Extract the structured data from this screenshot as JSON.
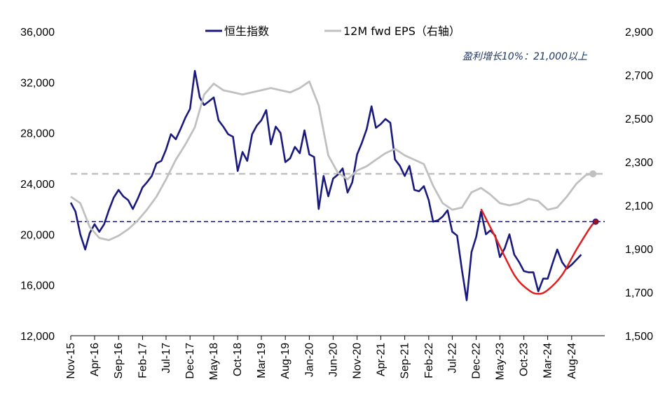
{
  "chart_data": {
    "type": "line",
    "title": "",
    "legend_position": "top-center",
    "grid": false,
    "x_axis": {
      "type": "date",
      "range": [
        "2015-11-01",
        "2025-02-28"
      ],
      "tick_labels": [
        "Nov-15",
        "Apr-16",
        "Sep-16",
        "Feb-17",
        "Jul-17",
        "Dec-17",
        "May-18",
        "Oct-18",
        "Mar-19",
        "Aug-19",
        "Jan-20",
        "Jun-20",
        "Nov-20",
        "Apr-21",
        "Sep-21",
        "Feb-22",
        "Jul-22",
        "Dec-22",
        "May-23",
        "Oct-23",
        "Mar-24",
        "Aug-24"
      ]
    },
    "y_left": {
      "range": [
        12000,
        36000
      ],
      "ticks": [
        12000,
        16000,
        20000,
        24000,
        28000,
        32000,
        36000
      ],
      "tick_labels": [
        "12,000",
        "16,000",
        "20,000",
        "24,000",
        "28,000",
        "32,000",
        "36,000"
      ]
    },
    "y_right": {
      "range": [
        1500,
        2900
      ],
      "ticks": [
        1500,
        1700,
        1900,
        2100,
        2300,
        2500,
        2700,
        2900
      ],
      "tick_labels": [
        "1,500",
        "1,700",
        "1,900",
        "2,100",
        "2,300",
        "2,500",
        "2,700",
        "2,900"
      ]
    },
    "series": [
      {
        "name": "恒生指数",
        "axis": "left",
        "color": "#1a1a7e",
        "points": [
          [
            "2015-11-01",
            22500
          ],
          [
            "2015-12-01",
            21800
          ],
          [
            "2016-01-01",
            20000
          ],
          [
            "2016-02-01",
            18800
          ],
          [
            "2016-03-01",
            20100
          ],
          [
            "2016-04-01",
            20800
          ],
          [
            "2016-05-01",
            20200
          ],
          [
            "2016-06-01",
            20800
          ],
          [
            "2016-07-01",
            21900
          ],
          [
            "2016-08-01",
            22900
          ],
          [
            "2016-09-01",
            23500
          ],
          [
            "2016-10-01",
            23000
          ],
          [
            "2016-11-01",
            22700
          ],
          [
            "2016-12-01",
            22000
          ],
          [
            "2017-01-01",
            22800
          ],
          [
            "2017-02-01",
            23700
          ],
          [
            "2017-03-01",
            24100
          ],
          [
            "2017-04-01",
            24600
          ],
          [
            "2017-05-01",
            25600
          ],
          [
            "2017-06-01",
            25800
          ],
          [
            "2017-07-01",
            26700
          ],
          [
            "2017-08-01",
            27900
          ],
          [
            "2017-09-01",
            27500
          ],
          [
            "2017-10-01",
            28300
          ],
          [
            "2017-11-01",
            29200
          ],
          [
            "2017-12-01",
            29900
          ],
          [
            "2018-01-01",
            32900
          ],
          [
            "2018-02-01",
            30800
          ],
          [
            "2018-03-01",
            30200
          ],
          [
            "2018-04-01",
            30500
          ],
          [
            "2018-05-01",
            30800
          ],
          [
            "2018-06-01",
            29000
          ],
          [
            "2018-07-01",
            28500
          ],
          [
            "2018-08-01",
            27900
          ],
          [
            "2018-09-01",
            27700
          ],
          [
            "2018-10-01",
            25000
          ],
          [
            "2018-11-01",
            26500
          ],
          [
            "2018-12-01",
            25800
          ],
          [
            "2019-01-01",
            27900
          ],
          [
            "2019-02-01",
            28600
          ],
          [
            "2019-03-01",
            29000
          ],
          [
            "2019-04-01",
            29800
          ],
          [
            "2019-05-01",
            27100
          ],
          [
            "2019-06-01",
            28500
          ],
          [
            "2019-07-01",
            28000
          ],
          [
            "2019-08-01",
            25700
          ],
          [
            "2019-09-01",
            26000
          ],
          [
            "2019-10-01",
            26900
          ],
          [
            "2019-11-01",
            26400
          ],
          [
            "2019-12-01",
            28200
          ],
          [
            "2020-01-01",
            26300
          ],
          [
            "2020-02-01",
            26100
          ],
          [
            "2020-03-01",
            22000
          ],
          [
            "2020-04-01",
            24600
          ],
          [
            "2020-05-01",
            23000
          ],
          [
            "2020-06-01",
            24400
          ],
          [
            "2020-07-01",
            24700
          ],
          [
            "2020-08-01",
            25200
          ],
          [
            "2020-09-01",
            23300
          ],
          [
            "2020-10-01",
            24100
          ],
          [
            "2020-11-01",
            26300
          ],
          [
            "2020-12-01",
            27200
          ],
          [
            "2021-01-01",
            28300
          ],
          [
            "2021-02-01",
            30100
          ],
          [
            "2021-03-01",
            28400
          ],
          [
            "2021-04-01",
            28700
          ],
          [
            "2021-05-01",
            29100
          ],
          [
            "2021-06-01",
            28800
          ],
          [
            "2021-07-01",
            25900
          ],
          [
            "2021-08-01",
            25400
          ],
          [
            "2021-09-01",
            24600
          ],
          [
            "2021-10-01",
            25400
          ],
          [
            "2021-11-01",
            23500
          ],
          [
            "2021-12-01",
            23400
          ],
          [
            "2022-01-01",
            23800
          ],
          [
            "2022-02-01",
            22700
          ],
          [
            "2022-03-01",
            21000
          ],
          [
            "2022-04-01",
            21100
          ],
          [
            "2022-05-01",
            21400
          ],
          [
            "2022-06-01",
            21900
          ],
          [
            "2022-07-01",
            20200
          ],
          [
            "2022-08-01",
            19900
          ],
          [
            "2022-09-01",
            17200
          ],
          [
            "2022-10-01",
            14800
          ],
          [
            "2022-11-01",
            18600
          ],
          [
            "2022-12-01",
            19800
          ],
          [
            "2023-01-01",
            21800
          ],
          [
            "2023-02-01",
            20000
          ],
          [
            "2023-03-01",
            20300
          ],
          [
            "2023-04-01",
            19900
          ],
          [
            "2023-05-01",
            18200
          ],
          [
            "2023-06-01",
            18900
          ],
          [
            "2023-07-01",
            20000
          ],
          [
            "2023-08-01",
            18400
          ],
          [
            "2023-09-01",
            17800
          ],
          [
            "2023-10-01",
            17100
          ],
          [
            "2023-11-01",
            17000
          ],
          [
            "2023-12-01",
            17000
          ],
          [
            "2024-01-01",
            15500
          ],
          [
            "2024-02-01",
            16500
          ],
          [
            "2024-03-01",
            16500
          ],
          [
            "2024-04-01",
            17700
          ],
          [
            "2024-05-01",
            18800
          ],
          [
            "2024-06-01",
            17800
          ],
          [
            "2024-07-01",
            17300
          ],
          [
            "2024-08-01",
            17600
          ],
          [
            "2024-09-01",
            18000
          ],
          [
            "2024-10-01",
            18400
          ]
        ]
      },
      {
        "name": "12M fwd EPS（右轴）",
        "axis": "right",
        "color": "#c0c0c0",
        "points": [
          [
            "2015-11-01",
            2140
          ],
          [
            "2016-01-01",
            2110
          ],
          [
            "2016-03-01",
            2000
          ],
          [
            "2016-05-01",
            1950
          ],
          [
            "2016-07-01",
            1940
          ],
          [
            "2016-09-01",
            1960
          ],
          [
            "2016-11-01",
            1990
          ],
          [
            "2017-01-01",
            2030
          ],
          [
            "2017-03-01",
            2080
          ],
          [
            "2017-05-01",
            2140
          ],
          [
            "2017-07-01",
            2220
          ],
          [
            "2017-09-01",
            2310
          ],
          [
            "2017-11-01",
            2380
          ],
          [
            "2018-01-01",
            2460
          ],
          [
            "2018-03-01",
            2610
          ],
          [
            "2018-05-01",
            2660
          ],
          [
            "2018-07-01",
            2630
          ],
          [
            "2018-09-01",
            2620
          ],
          [
            "2018-11-01",
            2610
          ],
          [
            "2019-01-01",
            2620
          ],
          [
            "2019-03-01",
            2630
          ],
          [
            "2019-05-01",
            2640
          ],
          [
            "2019-07-01",
            2630
          ],
          [
            "2019-09-01",
            2620
          ],
          [
            "2019-11-01",
            2640
          ],
          [
            "2020-01-01",
            2670
          ],
          [
            "2020-03-01",
            2560
          ],
          [
            "2020-05-01",
            2330
          ],
          [
            "2020-07-01",
            2250
          ],
          [
            "2020-09-01",
            2220
          ],
          [
            "2020-11-01",
            2260
          ],
          [
            "2021-01-01",
            2280
          ],
          [
            "2021-03-01",
            2310
          ],
          [
            "2021-05-01",
            2340
          ],
          [
            "2021-07-01",
            2360
          ],
          [
            "2021-09-01",
            2330
          ],
          [
            "2021-11-01",
            2310
          ],
          [
            "2022-01-01",
            2290
          ],
          [
            "2022-03-01",
            2190
          ],
          [
            "2022-05-01",
            2110
          ],
          [
            "2022-07-01",
            2080
          ],
          [
            "2022-09-01",
            2090
          ],
          [
            "2022-11-01",
            2160
          ],
          [
            "2023-01-01",
            2180
          ],
          [
            "2023-03-01",
            2150
          ],
          [
            "2023-05-01",
            2110
          ],
          [
            "2023-07-01",
            2100
          ],
          [
            "2023-09-01",
            2110
          ],
          [
            "2023-11-01",
            2130
          ],
          [
            "2024-01-01",
            2120
          ],
          [
            "2024-03-01",
            2080
          ],
          [
            "2024-05-01",
            2090
          ],
          [
            "2024-07-01",
            2140
          ],
          [
            "2024-09-01",
            2200
          ],
          [
            "2024-11-01",
            2240
          ],
          [
            "2024-12-15",
            2245
          ]
        ]
      }
    ],
    "reference_lines": [
      {
        "axis": "right",
        "value": 2245,
        "style": "dashed",
        "color": "#c0c0c0"
      },
      {
        "axis": "left",
        "value": 21000,
        "style": "dashed",
        "color": "#1a1a7e"
      }
    ],
    "trend_curve": {
      "axis": "left",
      "color": "#e02020",
      "points": [
        [
          "2023-01-01",
          22000
        ],
        [
          "2023-04-01",
          19800
        ],
        [
          "2023-08-01",
          16800
        ],
        [
          "2023-11-01",
          15600
        ],
        [
          "2024-01-01",
          15300
        ],
        [
          "2024-03-01",
          15600
        ],
        [
          "2024-06-01",
          16800
        ],
        [
          "2024-09-01",
          18800
        ],
        [
          "2024-12-01",
          20600
        ],
        [
          "2025-01-01",
          21000
        ]
      ]
    },
    "annotations": [
      {
        "text": "盈利增长10%：21,000以上"
      }
    ]
  }
}
